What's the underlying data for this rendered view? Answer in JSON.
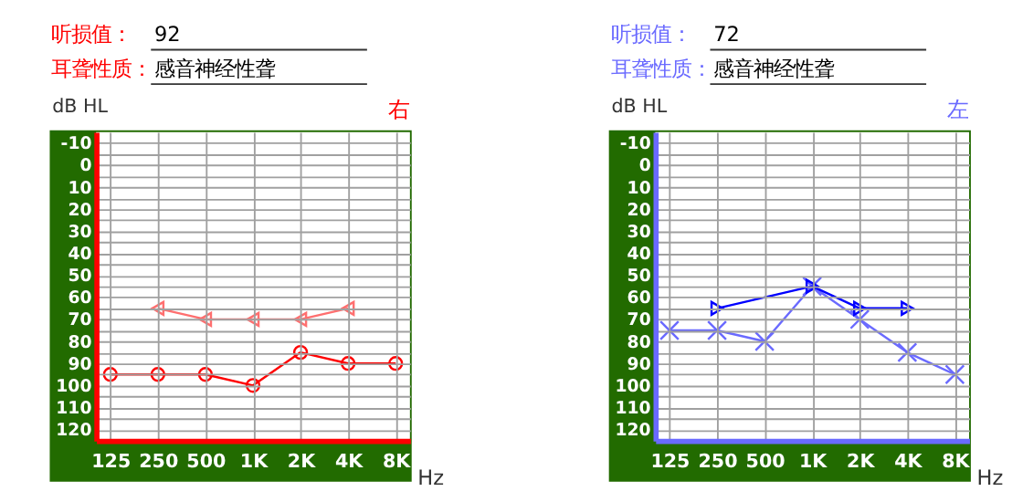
{
  "chart_data": [
    {
      "type": "line",
      "title": "右",
      "ylabel": "dB HL",
      "xlabel": "Hz",
      "annotations": [
        "听损值：",
        "92",
        "耳聋性质：",
        "感音神经性聋"
      ],
      "categories": [
        "125",
        "250",
        "500",
        "1K",
        "2K",
        "4K",
        "8K"
      ],
      "series": [
        {
          "color": "#ff0000",
          "marker": "circle",
          "values": [
            95,
            95,
            95,
            100,
            85,
            90,
            90
          ]
        },
        {
          "color": "#ff6f6f",
          "marker": "triangle",
          "values": [
            null,
            65,
            70,
            70,
            70,
            65,
            null
          ]
        }
      ],
      "ylim": [
        125,
        -15
      ],
      "yticks": [
        -10,
        {
          "value": -5,
          "label": null
        },
        0,
        {
          "value": 5,
          "label": null
        },
        10,
        {
          "value": 15,
          "label": null
        },
        20,
        {
          "value": 25,
          "label": null
        },
        30,
        {
          "value": 35,
          "label": null
        },
        40,
        {
          "value": 45,
          "label": null
        },
        50,
        {
          "value": 55,
          "label": null
        },
        60,
        {
          "value": 65,
          "label": null
        },
        70,
        {
          "value": 75,
          "label": null
        },
        80,
        {
          "value": 85,
          "label": null
        },
        90,
        {
          "value": 95,
          "label": null
        },
        100,
        {
          "value": 105,
          "label": null
        },
        110,
        {
          "value": 115,
          "label": null
        },
        120
      ],
      "grid": true,
      "line_style": "solid"
    },
    {
      "type": "line",
      "title": "左",
      "ylabel": "dB HL",
      "xlabel": "Hz",
      "annotations": [
        "听损值：",
        "72",
        "耳聋性质：",
        "感音神经性聋"
      ],
      "categories": [
        "125",
        "250",
        "500",
        "1K",
        "2K",
        "4K",
        "8K"
      ],
      "series": [
        {
          "color": "#6a6aff",
          "marker": "cross",
          "values": [
            75,
            75,
            80,
            55,
            70,
            85,
            95
          ]
        },
        {
          "color": "#0000ff",
          "marker": "triangle",
          "values": [
            null,
            65,
            null,
            55,
            65,
            65,
            null
          ]
        }
      ],
      "ylim": [
        125,
        -15
      ],
      "yticks": [
        -10,
        {
          "value": -5,
          "label": null
        },
        0,
        {
          "value": 5,
          "label": null
        },
        10,
        {
          "value": 15,
          "label": null
        },
        20,
        {
          "value": 25,
          "label": null
        },
        30,
        {
          "value": 35,
          "label": null
        },
        40,
        {
          "value": 45,
          "label": null
        },
        50,
        {
          "value": 55,
          "label": null
        },
        60,
        {
          "value": 65,
          "label": null
        },
        70,
        {
          "value": 75,
          "label": null
        },
        80,
        {
          "value": 85,
          "label": null
        },
        90,
        {
          "value": 95,
          "label": null
        },
        100,
        {
          "value": 105,
          "label": null
        },
        110,
        {
          "value": 115,
          "label": null
        },
        120
      ],
      "grid": true,
      "line_style": "solid"
    }
  ]
}
